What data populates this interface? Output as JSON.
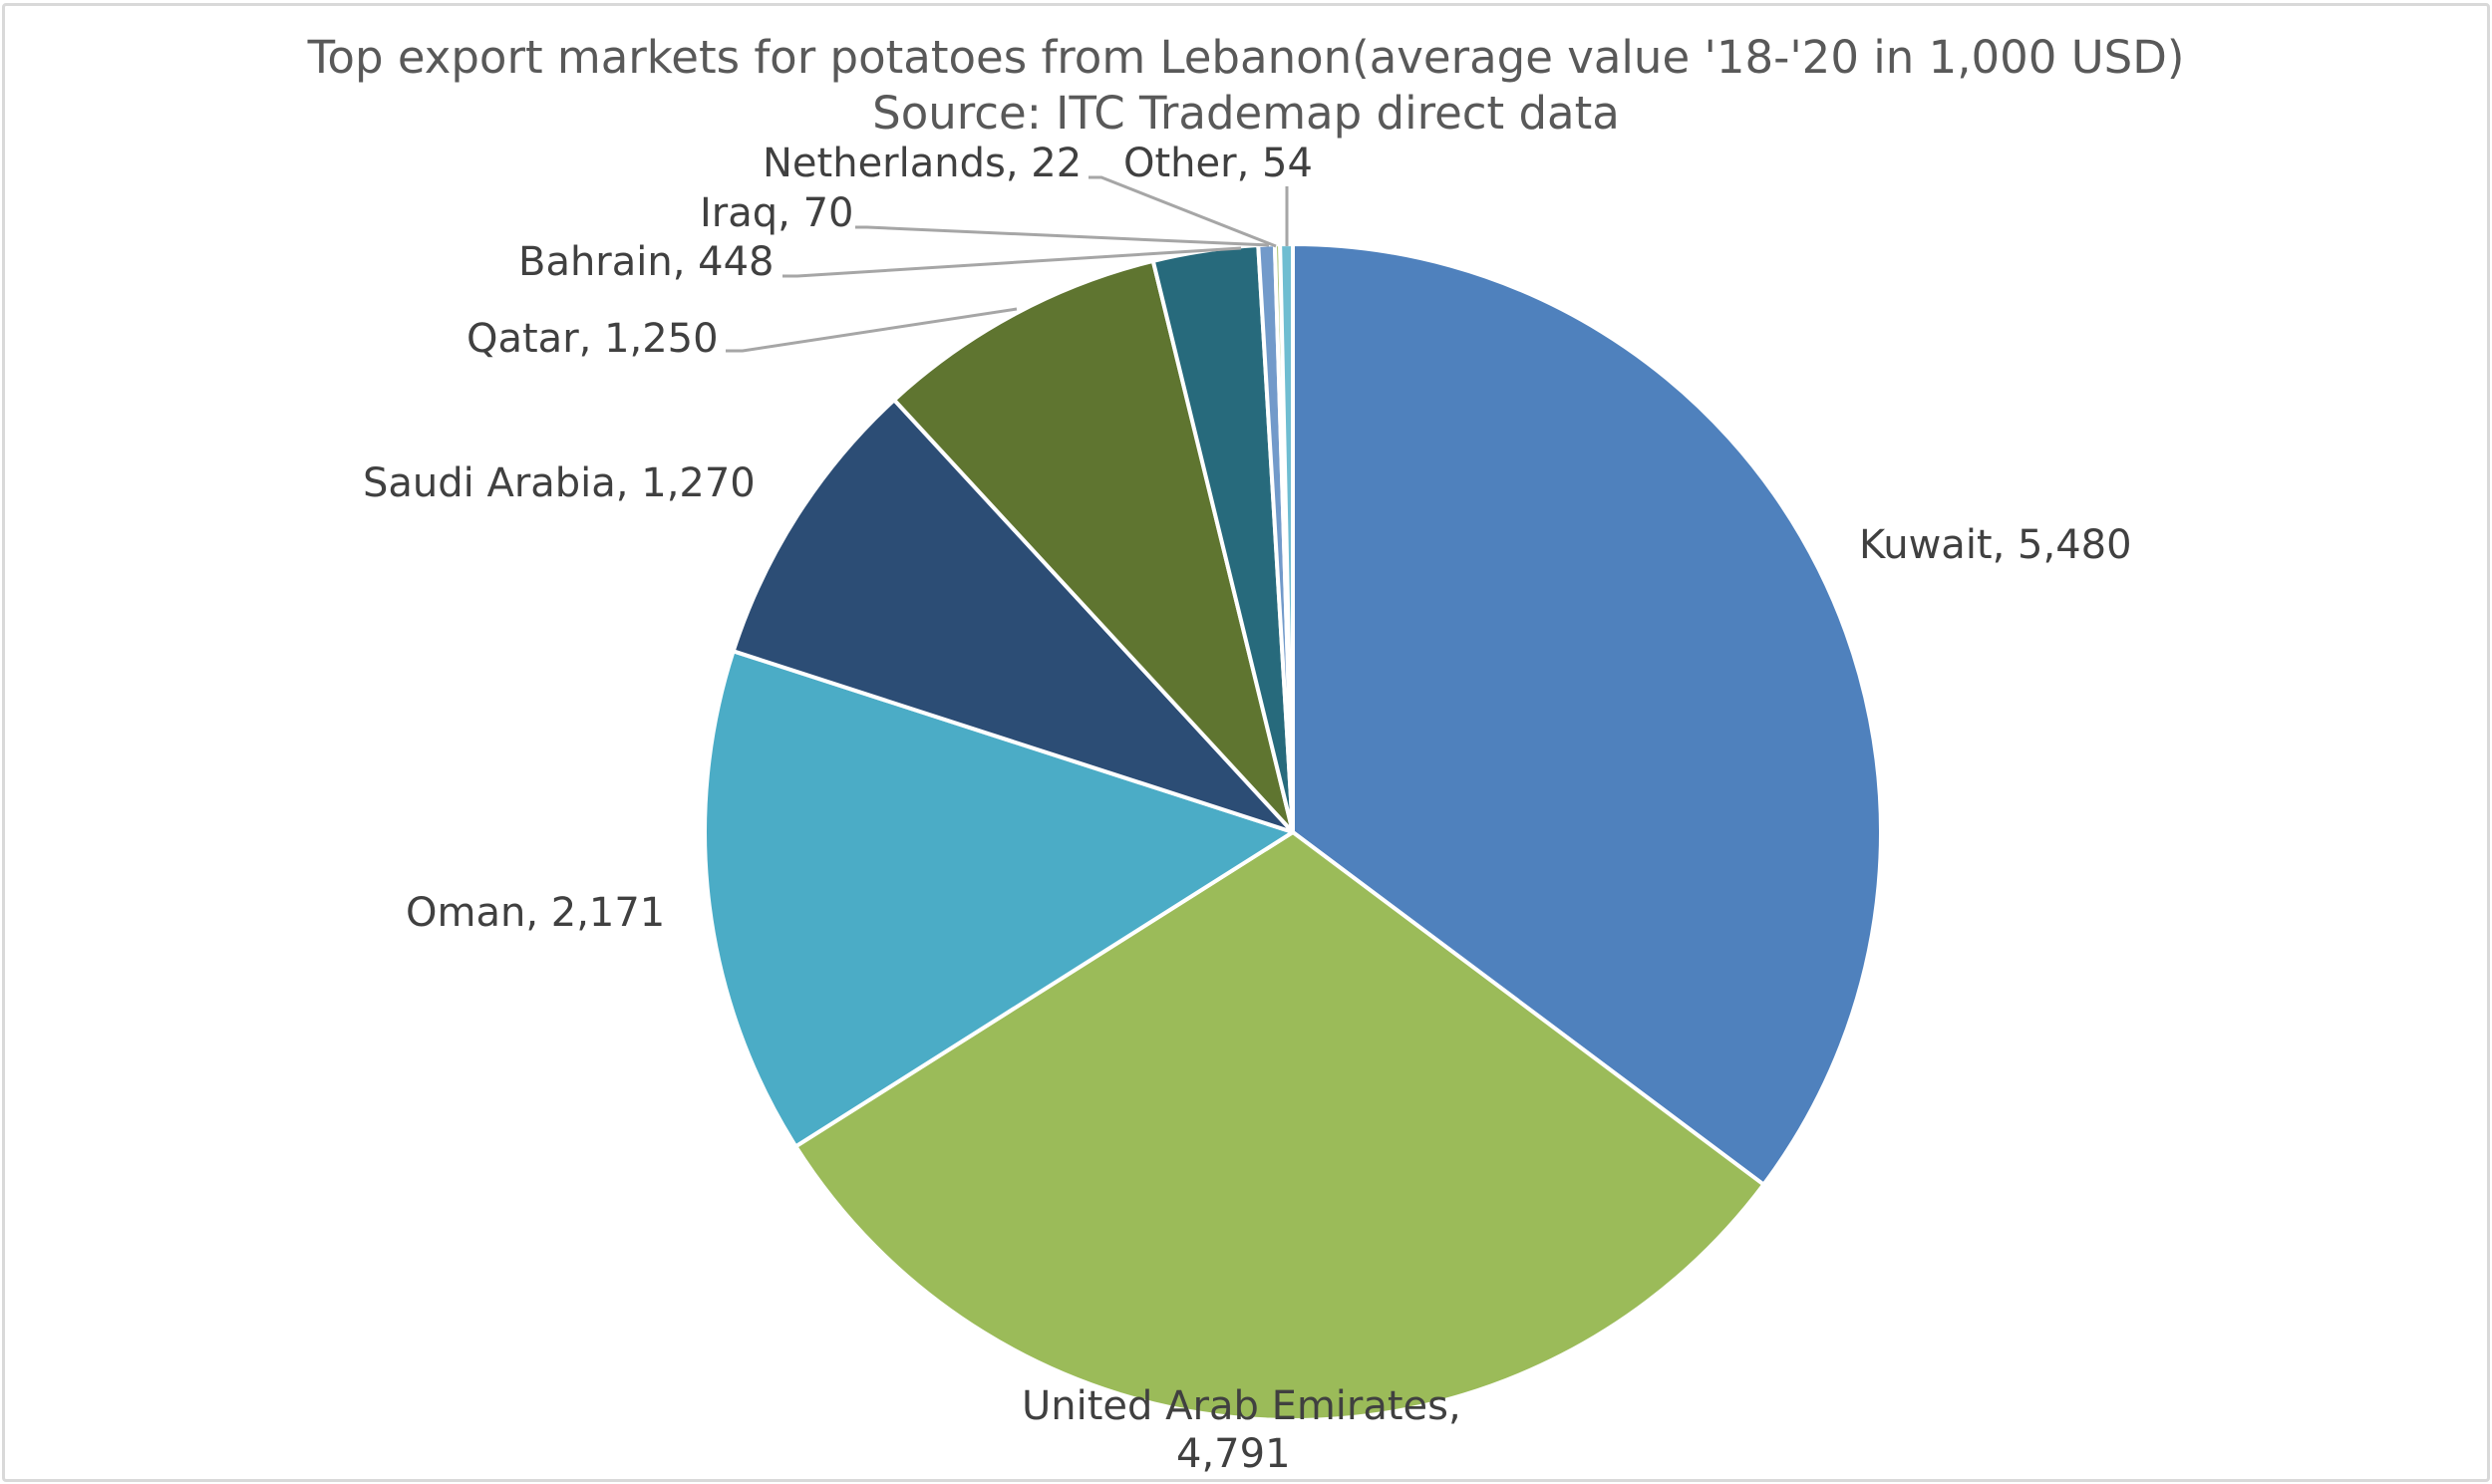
{
  "chart_data": {
    "type": "pie",
    "title": "Top export markets for potatoes from Lebanon(average value '18-'20 in 1,000 USD)",
    "subtitle": "Source: ITC Trademap direct data",
    "categories": [
      "Kuwait",
      "United Arab Emirates",
      "Oman",
      "Saudi Arabia",
      "Qatar",
      "Bahrain",
      "Iraq",
      "Netherlands",
      "Other"
    ],
    "values": [
      5480,
      4791,
      2171,
      1270,
      1250,
      448,
      70,
      22,
      54
    ],
    "colors": [
      "#4F81BD",
      "#9BBB59",
      "#4BACC6",
      "#2C4D75",
      "#5F7530",
      "#276A7C",
      "#729ACA",
      "#AFC97A",
      "#6FBDD1"
    ],
    "data_labels": [
      "Kuwait, 5,480",
      "United Arab Emirates, 4,791",
      "Oman, 2,171",
      "Saudi Arabia, 1,270",
      "Qatar, 1,250",
      "Bahrain, 448",
      "Iraq, 70",
      "Netherlands, 22",
      "Other, 54"
    ],
    "legend": "none",
    "start_angle": "12 o'clock, clockwise"
  },
  "title": {
    "line1": "Top export markets for potatoes from Lebanon(average value '18-'20 in 1,000 USD)",
    "line2": "Source: ITC Trademap direct data"
  },
  "labels": {
    "kuwait": "Kuwait, 5,480",
    "uae_line1": "United Arab Emirates,",
    "uae_line2": "4,791",
    "oman": "Oman, 2,171",
    "saudi": "Saudi Arabia, 1,270",
    "qatar": "Qatar, 1,250",
    "bahrain": "Bahrain, 448",
    "iraq": "Iraq, 70",
    "netherlands": "Netherlands, 22",
    "other": "Other, 54"
  }
}
